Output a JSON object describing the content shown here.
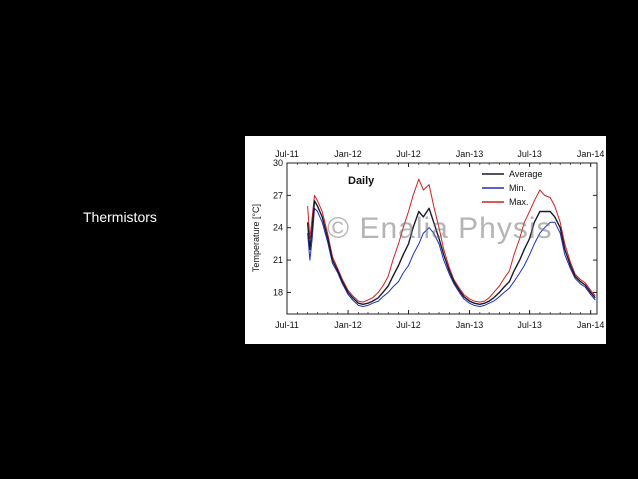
{
  "slide": {
    "label": "Thermistors"
  },
  "watermark": "© Enalia Physis",
  "chart_data": {
    "type": "line",
    "title": "Daily",
    "xlabel": "",
    "ylabel": "Temperature [°C]",
    "ylim": [
      16,
      30
    ],
    "xlim": [
      "2011-07-01",
      "2014-01-20"
    ],
    "x_ticks": [
      "Jul-11",
      "Jan-12",
      "Jul-12",
      "Jan-13",
      "Jul-13",
      "Jan-14"
    ],
    "y_ticks": [
      18,
      21,
      24,
      27,
      30
    ],
    "legend_position": "top-right",
    "colors": {
      "average": "#1a1a2a",
      "min": "#1f2fbf",
      "max": "#d42020"
    },
    "series": [
      {
        "name": "Average",
        "x": [
          "2011-09-01",
          "2011-09-08",
          "2011-09-15",
          "2011-09-22",
          "2011-10-01",
          "2011-10-15",
          "2011-11-01",
          "2011-11-15",
          "2011-12-01",
          "2011-12-15",
          "2012-01-01",
          "2012-01-15",
          "2012-02-01",
          "2012-02-15",
          "2012-03-01",
          "2012-03-15",
          "2012-04-01",
          "2012-04-15",
          "2012-05-01",
          "2012-05-15",
          "2012-06-01",
          "2012-06-15",
          "2012-07-01",
          "2012-07-15",
          "2012-08-01",
          "2012-08-15",
          "2012-09-01",
          "2012-09-15",
          "2012-10-01",
          "2012-10-15",
          "2012-11-01",
          "2012-11-15",
          "2012-12-01",
          "2012-12-15",
          "2013-01-01",
          "2013-01-15",
          "2013-02-01",
          "2013-02-15",
          "2013-03-01",
          "2013-03-15",
          "2013-04-01",
          "2013-04-15",
          "2013-05-01",
          "2013-05-15",
          "2013-06-01",
          "2013-06-15",
          "2013-07-01",
          "2013-07-15",
          "2013-08-01",
          "2013-08-15",
          "2013-09-01",
          "2013-09-15",
          "2013-10-01",
          "2013-10-15",
          "2013-11-01",
          "2013-11-15",
          "2013-12-01",
          "2013-12-15",
          "2014-01-01",
          "2014-01-15"
        ],
        "y": [
          24.5,
          22.0,
          24.0,
          26.5,
          26.0,
          25.0,
          23.0,
          21.0,
          20.0,
          19.0,
          18.0,
          17.5,
          17.0,
          16.9,
          17.0,
          17.2,
          17.5,
          18.0,
          18.6,
          19.5,
          20.5,
          21.5,
          22.5,
          24.0,
          25.5,
          25.0,
          25.8,
          24.5,
          23.0,
          21.5,
          20.0,
          19.0,
          18.2,
          17.6,
          17.2,
          17.0,
          16.9,
          17.0,
          17.2,
          17.5,
          18.0,
          18.5,
          19.0,
          20.0,
          21.0,
          22.0,
          23.0,
          24.5,
          25.5,
          25.5,
          25.5,
          25.0,
          24.0,
          22.0,
          20.5,
          19.5,
          19.0,
          18.7,
          18.0,
          17.5
        ]
      },
      {
        "name": "Min.",
        "x": [
          "2011-09-01",
          "2011-09-08",
          "2011-09-15",
          "2011-09-22",
          "2011-10-01",
          "2011-10-15",
          "2011-11-01",
          "2011-11-15",
          "2011-12-01",
          "2011-12-15",
          "2012-01-01",
          "2012-01-15",
          "2012-02-01",
          "2012-02-15",
          "2012-03-01",
          "2012-03-15",
          "2012-04-01",
          "2012-04-15",
          "2012-05-01",
          "2012-05-15",
          "2012-06-01",
          "2012-06-15",
          "2012-07-01",
          "2012-07-15",
          "2012-08-01",
          "2012-08-15",
          "2012-09-01",
          "2012-09-15",
          "2012-10-01",
          "2012-10-15",
          "2012-11-01",
          "2012-11-15",
          "2012-12-01",
          "2012-12-15",
          "2013-01-01",
          "2013-01-15",
          "2013-02-01",
          "2013-02-15",
          "2013-03-01",
          "2013-03-15",
          "2013-04-01",
          "2013-04-15",
          "2013-05-01",
          "2013-05-15",
          "2013-06-01",
          "2013-06-15",
          "2013-07-01",
          "2013-07-15",
          "2013-08-01",
          "2013-08-15",
          "2013-09-01",
          "2013-09-15",
          "2013-10-01",
          "2013-10-15",
          "2013-11-01",
          "2013-11-15",
          "2013-12-01",
          "2013-12-15",
          "2014-01-01",
          "2014-01-15"
        ],
        "y": [
          23.5,
          21.0,
          23.0,
          25.8,
          25.5,
          24.5,
          22.6,
          20.7,
          19.8,
          18.8,
          17.8,
          17.3,
          16.8,
          16.7,
          16.8,
          17.0,
          17.2,
          17.6,
          18.0,
          18.5,
          19.0,
          19.8,
          20.5,
          21.5,
          22.5,
          23.5,
          24.0,
          23.5,
          22.5,
          21.0,
          19.7,
          18.8,
          18.0,
          17.4,
          17.0,
          16.8,
          16.7,
          16.8,
          17.0,
          17.2,
          17.6,
          18.0,
          18.4,
          19.0,
          19.8,
          20.5,
          21.5,
          22.5,
          23.5,
          24.0,
          24.5,
          24.5,
          23.5,
          21.5,
          20.2,
          19.3,
          18.8,
          18.5,
          17.8,
          17.3
        ]
      },
      {
        "name": "Max.",
        "x": [
          "2011-09-01",
          "2011-09-08",
          "2011-09-15",
          "2011-09-22",
          "2011-10-01",
          "2011-10-15",
          "2011-11-01",
          "2011-11-15",
          "2011-12-01",
          "2011-12-15",
          "2012-01-01",
          "2012-01-15",
          "2012-02-01",
          "2012-02-15",
          "2012-03-01",
          "2012-03-15",
          "2012-04-01",
          "2012-04-15",
          "2012-05-01",
          "2012-05-15",
          "2012-06-01",
          "2012-06-15",
          "2012-07-01",
          "2012-07-15",
          "2012-08-01",
          "2012-08-15",
          "2012-09-01",
          "2012-09-15",
          "2012-10-01",
          "2012-10-15",
          "2012-11-01",
          "2012-11-15",
          "2012-12-01",
          "2012-12-15",
          "2013-01-01",
          "2013-01-15",
          "2013-02-01",
          "2013-02-15",
          "2013-03-01",
          "2013-03-15",
          "2013-04-01",
          "2013-04-15",
          "2013-05-01",
          "2013-05-15",
          "2013-06-01",
          "2013-06-15",
          "2013-07-01",
          "2013-07-15",
          "2013-08-01",
          "2013-08-15",
          "2013-09-01",
          "2013-09-15",
          "2013-10-01",
          "2013-10-15",
          "2013-11-01",
          "2013-11-15",
          "2013-12-01",
          "2013-12-15",
          "2014-01-01",
          "2014-01-15"
        ],
        "y": [
          26.0,
          23.0,
          25.0,
          27.0,
          26.5,
          25.5,
          23.4,
          21.3,
          20.2,
          19.2,
          18.2,
          17.7,
          17.2,
          17.1,
          17.3,
          17.5,
          18.0,
          18.6,
          19.5,
          21.0,
          22.5,
          24.0,
          25.5,
          27.0,
          28.5,
          27.5,
          28.0,
          26.0,
          24.0,
          22.0,
          20.3,
          19.2,
          18.4,
          17.8,
          17.4,
          17.2,
          17.1,
          17.2,
          17.5,
          18.0,
          18.6,
          19.3,
          20.0,
          21.5,
          23.0,
          24.5,
          25.5,
          26.5,
          27.5,
          27.0,
          26.8,
          26.0,
          24.5,
          22.5,
          20.8,
          19.7,
          19.2,
          18.9,
          18.2,
          17.7
        ]
      }
    ]
  }
}
